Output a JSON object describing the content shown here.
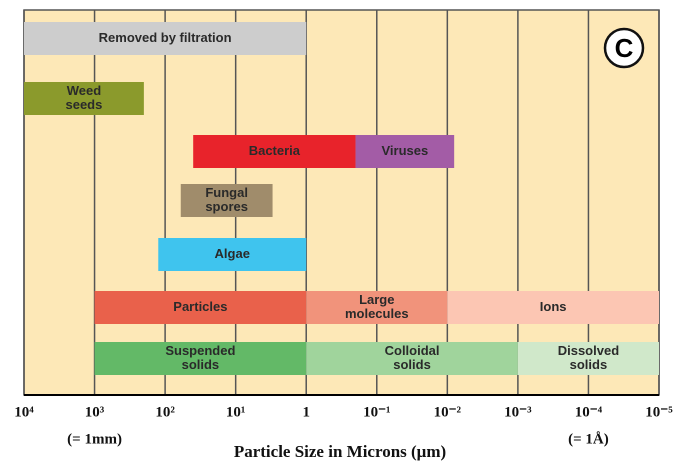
{
  "chart_data": {
    "type": "range_bar",
    "xlabel": "Particle Size in Microns (μm)",
    "xlim": [
      10000,
      1e-05
    ],
    "log_scale": true,
    "grid": true,
    "xticks": [
      {
        "value": 10000,
        "label": "10⁴"
      },
      {
        "value": 1000,
        "label": "10³"
      },
      {
        "value": 100,
        "label": "10²"
      },
      {
        "value": 10,
        "label": "10¹"
      },
      1,
      {
        "value": 0.1,
        "label": "10⁻¹"
      },
      {
        "value": 0.01,
        "label": "10⁻²"
      },
      {
        "value": 0.001,
        "label": "10⁻³"
      },
      {
        "value": 0.0001,
        "label": "10⁻⁴"
      },
      {
        "value": 1e-05,
        "label": "10⁻⁵"
      }
    ],
    "annotations": [
      {
        "text": "(= 1mm)",
        "x": 1000
      },
      {
        "text": "(= 1Å)",
        "x": 0.0001
      }
    ],
    "badge": "C",
    "bars": [
      {
        "label": [
          "Removed by filtration"
        ],
        "start": 10000,
        "end": 1,
        "color": "#cdcdcd"
      },
      {
        "label": [
          "Weed",
          "seeds"
        ],
        "start": 10000,
        "end": 200,
        "color": "#8b9a2c"
      },
      {
        "label": [
          "Bacteria"
        ],
        "start": 40,
        "end": 0.2,
        "color": "#e8232b"
      },
      {
        "label": [
          "Viruses"
        ],
        "start": 0.2,
        "end": 0.008,
        "color": "#a35ca6"
      },
      {
        "label": [
          "Fungal",
          "spores"
        ],
        "start": 60,
        "end": 3,
        "color": "#a08c6b"
      },
      {
        "label": [
          "Algae"
        ],
        "start": 125,
        "end": 1,
        "color": "#3fc4ee"
      },
      {
        "label": [
          "Particles"
        ],
        "start": 1000,
        "end": 1,
        "color": "#e9614b"
      },
      {
        "label": [
          "Large",
          "molecules"
        ],
        "start": 1,
        "end": 0.01,
        "color": "#f1937b"
      },
      {
        "label": [
          "Ions"
        ],
        "start": 0.01,
        "end": 1e-05,
        "color": "#fcc6b3"
      },
      {
        "label": [
          "Suspended",
          "solids"
        ],
        "start": 1000,
        "end": 1,
        "color": "#63b967"
      },
      {
        "label": [
          "Colloidal",
          "solids"
        ],
        "start": 1,
        "end": 0.001,
        "color": "#a0d49c"
      },
      {
        "label": [
          "Dissolved",
          "solids"
        ],
        "start": 0.001,
        "end": 1e-05,
        "color": "#d0e8ca"
      }
    ]
  }
}
